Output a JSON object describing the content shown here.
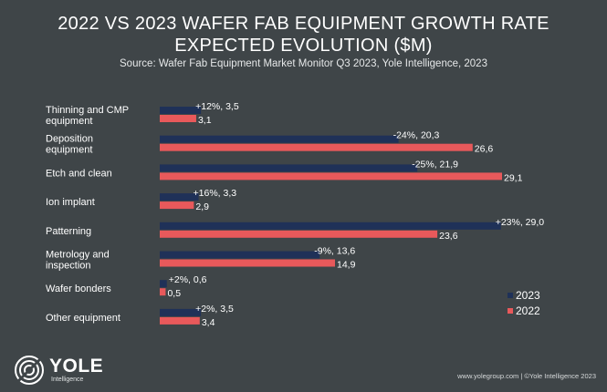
{
  "title_line1": "2022 VS 2023 WAFER FAB EQUIPMENT GROWTH RATE",
  "title_line2": "EXPECTED EVOLUTION ($M)",
  "subtitle": "Source: Wafer Fab Equipment Market Monitor Q3 2023, Yole Intelligence, 2023",
  "logo": {
    "name": "YOLE",
    "tagline": "Intelligence"
  },
  "footer": "www.yolegroup.com | ©Yole Intelligence 2023",
  "colors": {
    "series_2023": "#1f3158",
    "series_2022": "#e8595b",
    "background": "#3f4548"
  },
  "chart_data": {
    "type": "bar",
    "orientation": "horizontal",
    "categories": [
      "Thinning and CMP\nequipment",
      "Deposition\nequipment",
      "Etch and clean",
      "Ion implant",
      "Patterning",
      "Metrology and\ninspection",
      "Wafer bonders",
      "Other equipment"
    ],
    "series": [
      {
        "name": "2023",
        "values": [
          3.5,
          20.3,
          21.9,
          3.3,
          29.0,
          13.6,
          0.6,
          3.5
        ],
        "labels": [
          "+12%,  3,5",
          "-24%,  20,3",
          "-25%,  21,9",
          "+16%,  3,3",
          "+23%,  29,0",
          "-9%,  13,6",
          "+2%,  0,6",
          "+2%,  3,5"
        ]
      },
      {
        "name": "2022",
        "values": [
          3.1,
          26.6,
          29.1,
          2.9,
          23.6,
          14.9,
          0.5,
          3.4
        ],
        "labels": [
          "3,1",
          "26,6",
          "29,1",
          "2,9",
          "23,6",
          "14,9",
          "0,5",
          "3,4"
        ]
      }
    ],
    "xlim": [
      0,
      29.1
    ],
    "legend_position": "bottom-right",
    "grid": false
  }
}
